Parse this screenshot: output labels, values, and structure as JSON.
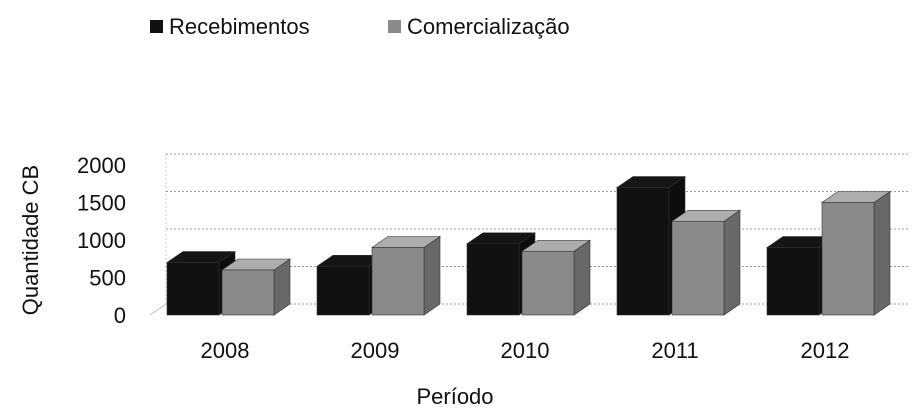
{
  "chart_data": {
    "type": "bar3d",
    "x_label": "Período",
    "y_label": "Quantidade CB",
    "categories": [
      "2008",
      "2009",
      "2010",
      "2011",
      "2012"
    ],
    "series": [
      {
        "name": "Recebimentos",
        "color": "#111111",
        "values": [
          700,
          650,
          950,
          1700,
          900
        ]
      },
      {
        "name": "Comercialização",
        "color": "#8a8a8a",
        "values": [
          600,
          900,
          850,
          1250,
          1500
        ]
      }
    ],
    "ylim": [
      0,
      2000
    ],
    "yticks": [
      0,
      500,
      1000,
      1500,
      2000
    ],
    "grid": true,
    "legend": "top"
  }
}
